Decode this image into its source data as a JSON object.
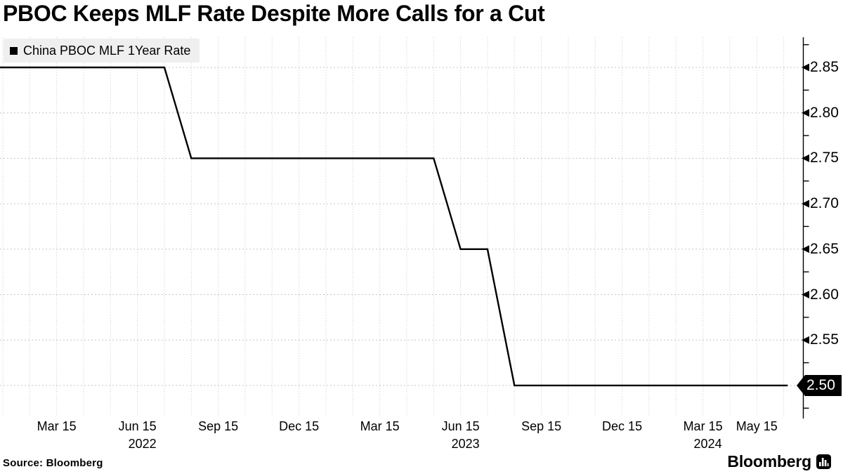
{
  "title": "PBOC Keeps MLF Rate Despite More Calls for a Cut",
  "legend": {
    "label": "China PBOC MLF 1Year Rate",
    "marker": "black-square"
  },
  "footer": {
    "source": "Source: Bloomberg",
    "brand": "Bloomberg",
    "brand_icon": "bloomberg-terminal-icon"
  },
  "colors": {
    "line": "#000000",
    "grid": "#c6c6c6",
    "axis": "#000000",
    "legend_bg": "#efefef",
    "tag_bg": "#000000",
    "tag_text": "#ffffff",
    "text": "#000000",
    "background": "#ffffff"
  },
  "chart_data": {
    "type": "line",
    "title": "PBOC Keeps MLF Rate Despite More Calls for a Cut",
    "xlabel": "",
    "ylabel": "",
    "grid": "dotted",
    "legend_position": "top-left",
    "series": [
      {
        "name": "China PBOC MLF 1Year Rate",
        "color": "#000000",
        "vertices": [
          {
            "date": "2022-01",
            "month_index": -0.12,
            "value": 2.85
          },
          {
            "date": "2022-07-15",
            "month_index": 6,
            "value": 2.85
          },
          {
            "date": "2022-08-15",
            "month_index": 7,
            "value": 2.75
          },
          {
            "date": "2023-05-15",
            "month_index": 16,
            "value": 2.75
          },
          {
            "date": "2023-06-15",
            "month_index": 17,
            "value": 2.65
          },
          {
            "date": "2023-07-15",
            "month_index": 18,
            "value": 2.65
          },
          {
            "date": "2023-08-15",
            "month_index": 19,
            "value": 2.5
          },
          {
            "date": "2024-06",
            "month_index": 29.15,
            "value": 2.5
          }
        ]
      }
    ],
    "x_axis": {
      "unit": "months since 2022-01-15",
      "first_month_index": 0,
      "last_month_index": 29,
      "gridline_every_months": 1,
      "ticks": [
        {
          "label": "Mar 15",
          "month_index": 2,
          "year": ""
        },
        {
          "label": "Jun 15",
          "month_index": 5,
          "year": "2022"
        },
        {
          "label": "Sep 15",
          "month_index": 8,
          "year": ""
        },
        {
          "label": "Dec 15",
          "month_index": 11,
          "year": ""
        },
        {
          "label": "Mar 15",
          "month_index": 14,
          "year": ""
        },
        {
          "label": "Jun 15",
          "month_index": 17,
          "year": "2023"
        },
        {
          "label": "Sep 15",
          "month_index": 20,
          "year": ""
        },
        {
          "label": "Dec 15",
          "month_index": 23,
          "year": ""
        },
        {
          "label": "Mar 15",
          "month_index": 26,
          "year": "2024"
        },
        {
          "label": "May 15",
          "month_index": 28,
          "year": ""
        }
      ]
    },
    "y_axis": {
      "side": "right",
      "minor_tick_step": 0.025,
      "range_top": 2.875,
      "range_bottom": 2.475,
      "last_value_label": "2.50",
      "ticks": [
        {
          "label": "2.85",
          "value": 2.85
        },
        {
          "label": "2.80",
          "value": 2.8
        },
        {
          "label": "2.75",
          "value": 2.75
        },
        {
          "label": "2.70",
          "value": 2.7
        },
        {
          "label": "2.65",
          "value": 2.65
        },
        {
          "label": "2.60",
          "value": 2.6
        },
        {
          "label": "2.55",
          "value": 2.55
        },
        {
          "label": "2.50",
          "value": 2.5,
          "tagged": true
        }
      ]
    }
  }
}
